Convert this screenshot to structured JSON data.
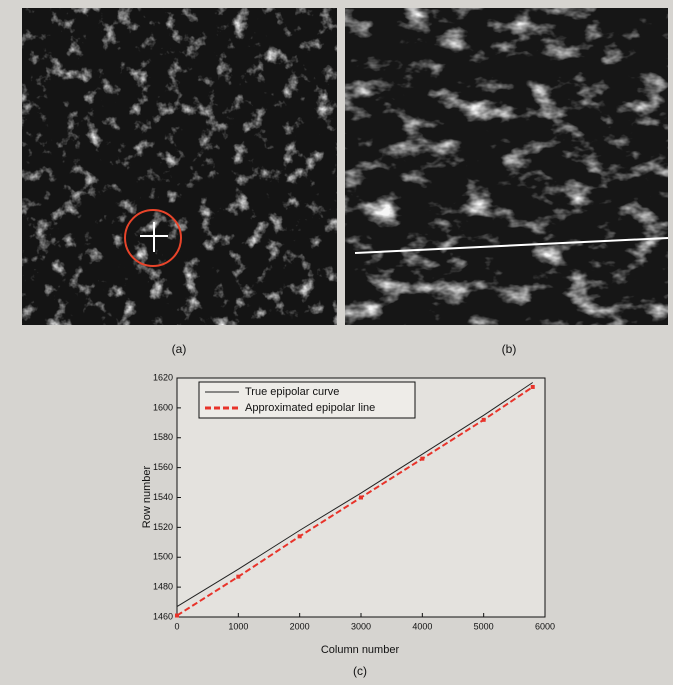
{
  "figure": {
    "panel_labels": [
      "(a)",
      "(b)",
      "(c)"
    ]
  },
  "chart_data": {
    "type": "line",
    "x_label": "Column number",
    "y_label": "Row number",
    "x": [
      0,
      1000,
      2000,
      3000,
      4000,
      5000,
      5800
    ],
    "series": [
      {
        "name": "True epipolar curve",
        "color": "#222222",
        "values": [
          1467,
          1492,
          1518,
          1543,
          1569,
          1595,
          1617
        ]
      },
      {
        "name": "Approximated epipolar line",
        "color": "#e8332a",
        "values": [
          1461,
          1487,
          1514,
          1540,
          1566,
          1592,
          1614
        ]
      }
    ],
    "xlim": [
      0,
      6000
    ],
    "xticks": [
      0,
      1000,
      2000,
      3000,
      4000,
      5000,
      6000
    ],
    "ylim": [
      1460,
      1620
    ],
    "yticks": [
      1460,
      1480,
      1500,
      1520,
      1540,
      1560,
      1580,
      1600,
      1620
    ],
    "legend": "upper left"
  }
}
